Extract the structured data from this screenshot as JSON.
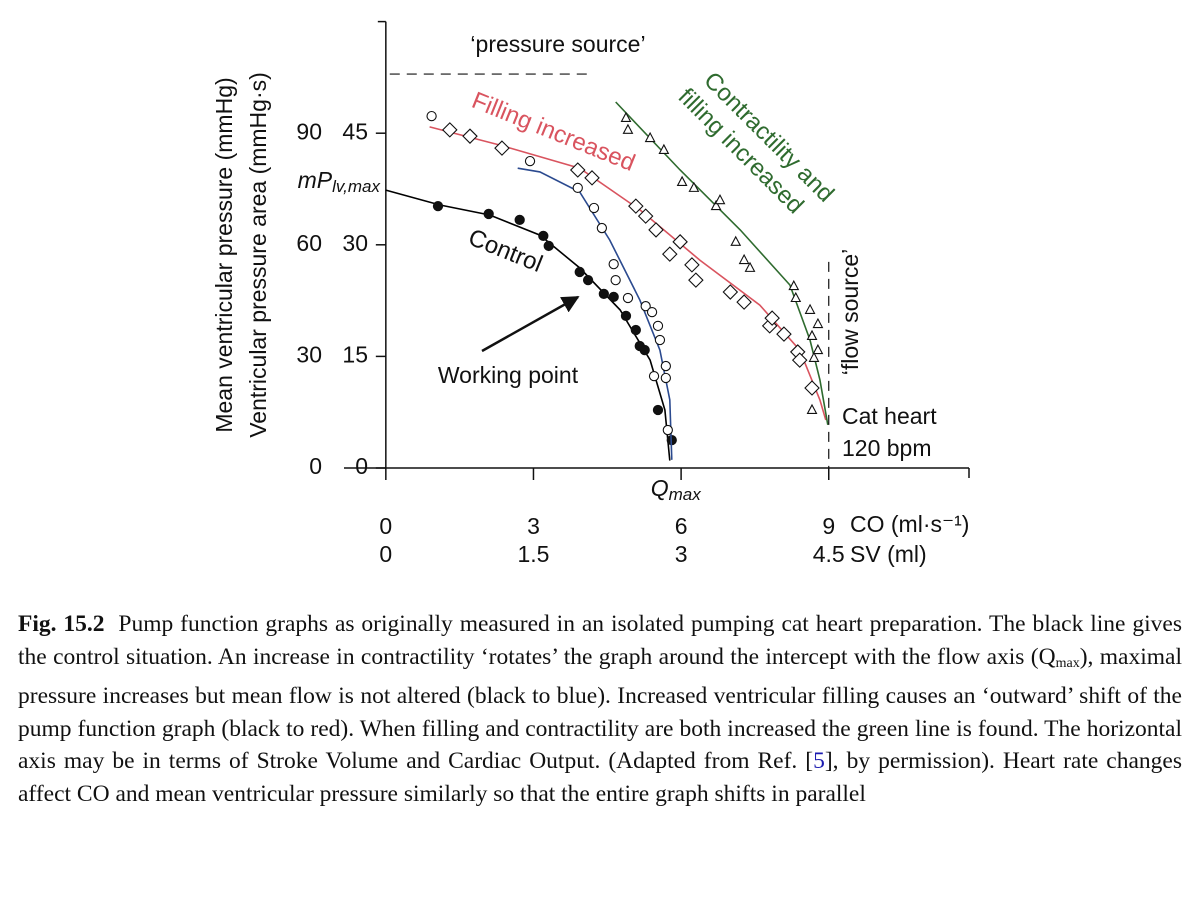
{
  "chart_data": {
    "type": "line-scatter",
    "y_label": "Mean ventricular pressure (mmHg)",
    "y2_label": "Ventricular pressure  area (mmHg·s)",
    "x_label": "CO (ml·s⁻¹)",
    "x2_label": "SV (ml)",
    "xlim": [
      -0.85,
      11.85
    ],
    "xticks": [
      0,
      3,
      6,
      9
    ],
    "x2lim": [
      -0.425,
      5.925
    ],
    "x2ticks": [
      0,
      1.5,
      3,
      4.5
    ],
    "ylim": [
      0,
      120
    ],
    "yticks": [
      0,
      30,
      60,
      90
    ],
    "y2lim": [
      0,
      60
    ],
    "y2ticks": [
      0,
      15,
      30,
      45
    ],
    "series": [
      {
        "name": "Control",
        "color": "#000000",
        "marker": "filled-circle",
        "line_x": [
          0,
          1.1,
          2.11,
          3.13,
          3.94,
          4.76,
          5.37,
          5.67,
          5.77
        ],
        "line_y": [
          74.7,
          70.7,
          68,
          62.6,
          53.8,
          42.5,
          29,
          15.6,
          2
        ],
        "x": [
          1.06,
          2.09,
          2.72,
          3.2,
          3.31,
          3.94,
          4.11,
          4.43,
          4.63,
          4.88,
          5.08,
          5.16,
          5.26,
          5.53,
          5.81
        ],
        "y": [
          70.4,
          68.3,
          66.7,
          62.4,
          59.7,
          52.7,
          50.5,
          46.8,
          46,
          40.9,
          37.1,
          32.8,
          31.7,
          15.6,
          7.5
        ]
      },
      {
        "color": "#2b4a8f",
        "marker": "open-circle",
        "line_x": [
          2.68,
          3.13,
          3.94,
          4.55,
          5.16,
          5.57,
          5.77,
          5.81
        ],
        "line_y": [
          80.6,
          79.6,
          74.2,
          61.3,
          45.2,
          31.7,
          18.3,
          2.2
        ],
        "x": [
          0.93,
          2.93,
          3.9,
          4.23,
          4.39,
          4.63,
          4.67,
          4.92,
          5.28,
          5.41,
          5.53,
          5.57,
          5.69,
          5.45,
          5.69,
          5.73
        ],
        "y": [
          94.6,
          82.5,
          75.3,
          69.9,
          64.5,
          54.8,
          50.5,
          45.7,
          43.5,
          41.9,
          38.2,
          34.4,
          27.4,
          24.7,
          24.2,
          10.2
        ]
      },
      {
        "name": "Filling increased",
        "color": "#d9545f",
        "marker": "diamond",
        "line_x": [
          0.89,
          2.32,
          3.94,
          5.16,
          6.38,
          7.6,
          8.41,
          8.82,
          8.94
        ],
        "line_y": [
          91.7,
          86.8,
          80.6,
          69.4,
          55.9,
          43.8,
          31.7,
          18.3,
          12.9
        ],
        "x": [
          1.3,
          1.71,
          2.36,
          3.9,
          4.19,
          5.08,
          5.28,
          5.49,
          5.77,
          5.98,
          6.22,
          6.3,
          7.0,
          7.28,
          7.8,
          7.85,
          8.09,
          8.37,
          8.41,
          8.66
        ],
        "y": [
          90.9,
          89.2,
          86,
          80.1,
          78,
          70.4,
          67.7,
          64,
          57.5,
          60.8,
          54.6,
          50.5,
          47.3,
          44.6,
          38.2,
          40.3,
          36,
          31.2,
          29,
          21.5
        ]
      },
      {
        "name_lines": [
          "Contractility and",
          "filling increased"
        ],
        "color": "#2f6b2f",
        "marker": "triangle",
        "line_x": [
          4.67,
          5.98,
          7.2,
          8.21,
          8.62,
          8.82,
          8.98
        ],
        "line_y": [
          98.4,
          80.1,
          64,
          49.2,
          34.4,
          23.7,
          11.6
        ],
        "x": [
          4.88,
          4.92,
          5.37,
          5.65,
          6.02,
          6.26,
          6.71,
          6.79,
          7.11,
          7.28,
          7.4,
          8.29,
          8.33,
          8.62,
          8.78,
          8.66,
          8.78,
          8.7,
          8.66
        ],
        "y": [
          94.1,
          90.9,
          88.7,
          85.5,
          76.9,
          75.3,
          70.4,
          72,
          60.8,
          55.9,
          53.8,
          48.9,
          45.7,
          42.5,
          38.7,
          35.5,
          31.7,
          29.6,
          15.6
        ]
      }
    ],
    "pressure_source": {
      "label": "‘pressure source’",
      "y": 105.9,
      "x_from": 0.08,
      "x_to": 4.15
    },
    "flow_source": {
      "label": "‘flow source’",
      "x": 9,
      "y_to": 55.4
    },
    "pmax": {
      "text": "mP",
      "sub": "lv,max",
      "y": 74.7
    },
    "qmax": {
      "text": "Q",
      "sub": "max",
      "x": 5.85
    },
    "working_point": "Working point",
    "note_lines": [
      "Cat heart",
      "120 bpm"
    ],
    "caption": {
      "label": "Fig. 15.2",
      "text_1": "Pump function graphs as originally measured in an isolated pumping cat heart preparation. The black line gives the control situation. An increase in contractility ‘rotates’ the graph around the intercept with the flow axis (Q",
      "sub": "max",
      "text_2": "), maximal pressure increases but mean flow is not altered (black to blue). Increased ventricular filling causes an ‘outward’ shift of the pump function graph (black to red). When filling and contractility are both increased the green line is found. The horizontal axis may be in terms of Stroke Volume and Cardiac Output. (Adapted from Ref. [",
      "ref": "5",
      "text_3": "], by permission). Heart rate changes affect CO and mean ventricular pressure similarly so that the entire graph shifts in parallel"
    }
  }
}
